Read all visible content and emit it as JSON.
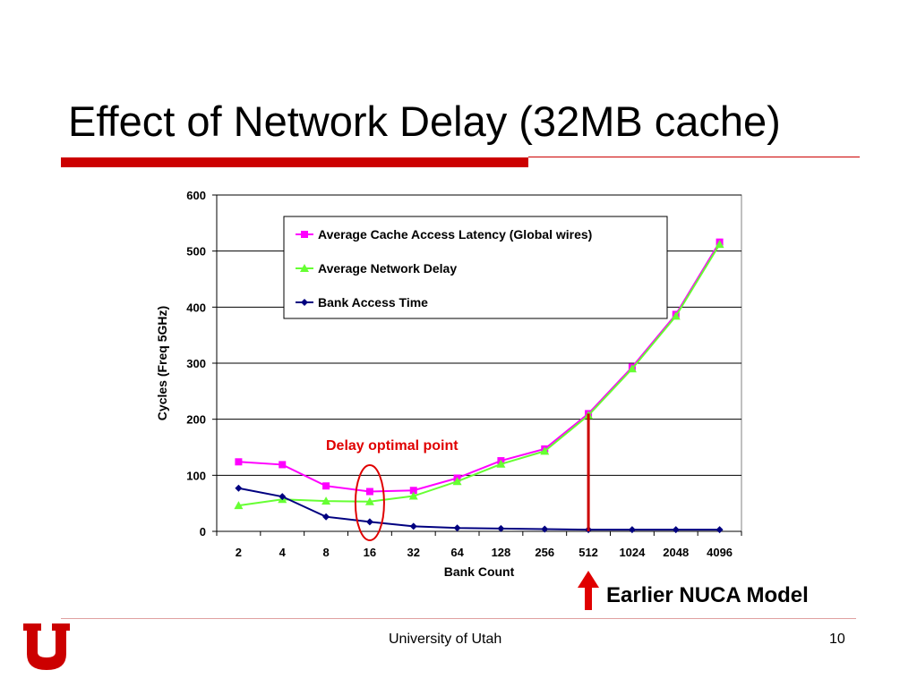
{
  "slide": {
    "title": "Effect of Network Delay (32MB cache)",
    "footer_text": "University of Utah",
    "page_number": "10"
  },
  "annotations": {
    "optimal_point": "Delay optimal point",
    "nuca_model": "Earlier NUCA Model"
  },
  "colors": {
    "accent_red": "#cc0000",
    "series_latency": "#ff00ff",
    "series_network": "#66ff33",
    "series_bank": "#000080"
  },
  "chart_data": {
    "type": "line",
    "title": "",
    "xlabel": "Bank Count",
    "ylabel": "Cycles (Freq 5GHz)",
    "categories": [
      "2",
      "4",
      "8",
      "16",
      "32",
      "64",
      "128",
      "256",
      "512",
      "1024",
      "2048",
      "4096"
    ],
    "ylim": [
      0,
      600
    ],
    "yticks": [
      0,
      100,
      200,
      300,
      400,
      500,
      600
    ],
    "grid": "horizontal",
    "legend_placement": "top-center",
    "series": [
      {
        "name": "Average Cache Access Latency (Global wires)",
        "marker": "square",
        "color": "#ff00ff",
        "values": [
          124,
          119,
          81,
          71,
          73,
          95,
          126,
          147,
          210,
          293,
          387,
          516
        ]
      },
      {
        "name": "Average Network Delay",
        "marker": "triangle",
        "color": "#66ff33",
        "values": [
          46,
          57,
          54,
          53,
          63,
          89,
          120,
          143,
          207,
          290,
          384,
          512
        ]
      },
      {
        "name": "Bank Access Time",
        "marker": "diamond",
        "color": "#000080",
        "values": [
          77,
          62,
          26,
          17,
          9,
          6,
          5,
          4,
          3,
          3,
          3,
          3
        ]
      }
    ],
    "highlight_category": "16",
    "marker_category": "512"
  }
}
